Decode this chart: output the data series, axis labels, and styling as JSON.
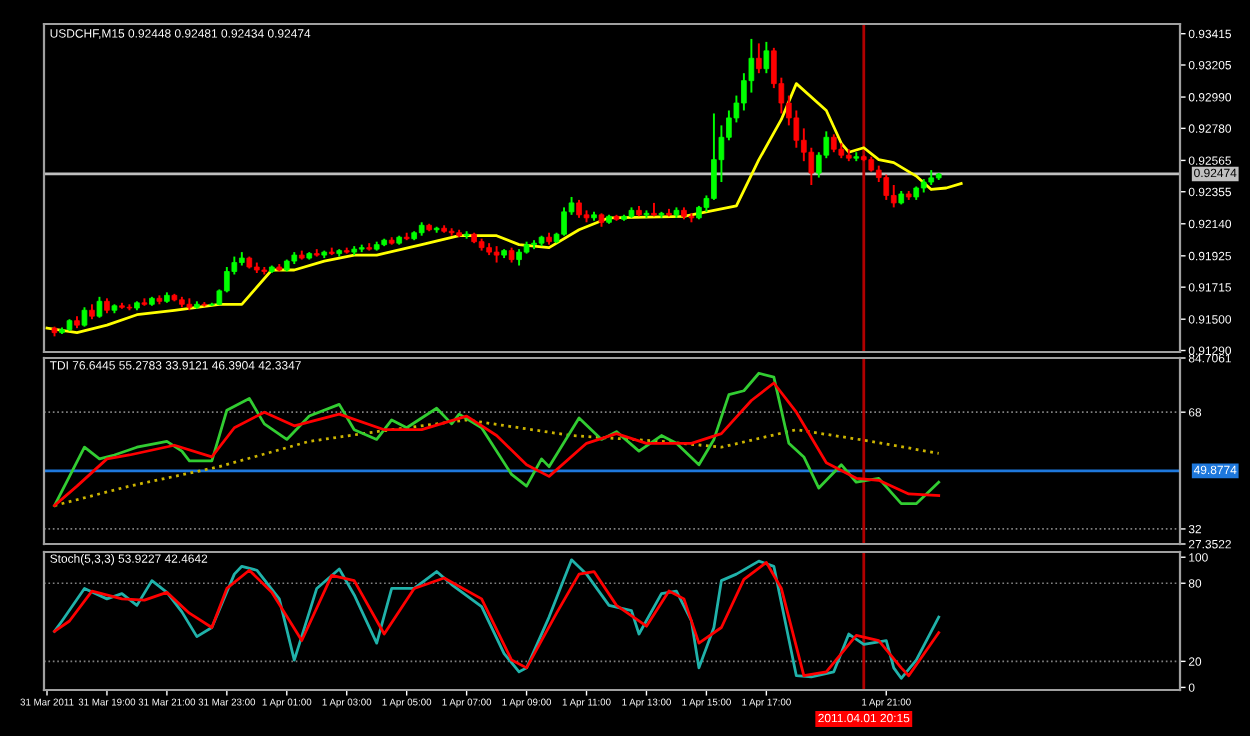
{
  "chart_data": [
    {
      "type": "candlestick",
      "title": "USDCHF,M15 0.92448 0.92481 0.92434 0.92474",
      "x": [
        "2011-03-31T17:15",
        "2011-03-31T17:30",
        "2011-03-31T17:45",
        "2011-03-31T18:00",
        "2011-03-31T18:15",
        "2011-03-31T18:30",
        "2011-03-31T18:45",
        "2011-03-31T19:00",
        "2011-03-31T19:15",
        "2011-03-31T19:30",
        "2011-03-31T19:45",
        "2011-03-31T20:00",
        "2011-03-31T20:15",
        "2011-03-31T20:30",
        "2011-03-31T20:45",
        "2011-03-31T21:00",
        "2011-03-31T21:15",
        "2011-03-31T21:30",
        "2011-03-31T21:45",
        "2011-03-31T22:00",
        "2011-03-31T22:15",
        "2011-03-31T22:30",
        "2011-03-31T22:45",
        "2011-03-31T23:00",
        "2011-03-31T23:15",
        "2011-03-31T23:30",
        "2011-03-31T23:45",
        "2011-04-01T00:00",
        "2011-04-01T00:15",
        "2011-04-01T00:30",
        "2011-04-01T00:45",
        "2011-04-01T01:00",
        "2011-04-01T01:15",
        "2011-04-01T01:30",
        "2011-04-01T01:45",
        "2011-04-01T02:00",
        "2011-04-01T02:15",
        "2011-04-01T02:30",
        "2011-04-01T02:45",
        "2011-04-01T03:00",
        "2011-04-01T03:15",
        "2011-04-01T03:30",
        "2011-04-01T03:45",
        "2011-04-01T04:00",
        "2011-04-01T04:15",
        "2011-04-01T04:30",
        "2011-04-01T04:45",
        "2011-04-01T05:00",
        "2011-04-01T05:15",
        "2011-04-01T05:30",
        "2011-04-01T05:45",
        "2011-04-01T06:00",
        "2011-04-01T06:15",
        "2011-04-01T06:30",
        "2011-04-01T06:45",
        "2011-04-01T07:00",
        "2011-04-01T07:15",
        "2011-04-01T07:30",
        "2011-04-01T07:45",
        "2011-04-01T08:00",
        "2011-04-01T08:15",
        "2011-04-01T08:30",
        "2011-04-01T08:45",
        "2011-04-01T09:00",
        "2011-04-01T09:15",
        "2011-04-01T09:30",
        "2011-04-01T09:45",
        "2011-04-01T10:00",
        "2011-04-01T10:15",
        "2011-04-01T10:30",
        "2011-04-01T10:45",
        "2011-04-01T11:00",
        "2011-04-01T11:15",
        "2011-04-01T11:30",
        "2011-04-01T11:45",
        "2011-04-01T12:00",
        "2011-04-01T12:15",
        "2011-04-01T12:30",
        "2011-04-01T12:45",
        "2011-04-01T13:00",
        "2011-04-01T13:15",
        "2011-04-01T13:30",
        "2011-04-01T13:45",
        "2011-04-01T14:00",
        "2011-04-01T14:15",
        "2011-04-01T14:30",
        "2011-04-01T14:45",
        "2011-04-01T15:00",
        "2011-04-01T15:15",
        "2011-04-01T15:30",
        "2011-04-01T15:45",
        "2011-04-01T16:00",
        "2011-04-01T16:15",
        "2011-04-01T16:30",
        "2011-04-01T16:45",
        "2011-04-01T17:00",
        "2011-04-01T17:15",
        "2011-04-01T17:30",
        "2011-04-01T17:45",
        "2011-04-01T18:00",
        "2011-04-01T18:15",
        "2011-04-01T18:30",
        "2011-04-01T18:45",
        "2011-04-01T19:00",
        "2011-04-01T19:15",
        "2011-04-01T19:30",
        "2011-04-01T19:45",
        "2011-04-01T20:00",
        "2011-04-01T20:15",
        "2011-04-01T20:30",
        "2011-04-01T20:45",
        "2011-04-01T21:00",
        "2011-04-01T21:15",
        "2011-04-01T21:30",
        "2011-04-01T21:45",
        "2011-04-01T22:00",
        "2011-04-01T22:15",
        "2011-04-01T22:30",
        "2011-04-01T22:45"
      ],
      "ohlc": [
        [
          0.9144,
          0.9145,
          0.91385,
          0.9141
        ],
        [
          0.9141,
          0.91445,
          0.914,
          0.9143
        ],
        [
          0.9143,
          0.915,
          0.9142,
          0.9149
        ],
        [
          0.9149,
          0.9152,
          0.9144,
          0.9146
        ],
        [
          0.9146,
          0.9158,
          0.9145,
          0.9156
        ],
        [
          0.9156,
          0.916,
          0.915,
          0.9152
        ],
        [
          0.9152,
          0.9165,
          0.9151,
          0.9162
        ],
        [
          0.9162,
          0.9164,
          0.9154,
          0.9156
        ],
        [
          0.9156,
          0.916,
          0.9154,
          0.9159
        ],
        [
          0.9159,
          0.9161,
          0.9157,
          0.9158
        ],
        [
          0.9158,
          0.916,
          0.9156,
          0.91575
        ],
        [
          0.91575,
          0.9162,
          0.9156,
          0.9161
        ],
        [
          0.9161,
          0.9164,
          0.9159,
          0.916
        ],
        [
          0.916,
          0.9165,
          0.9159,
          0.9164
        ],
        [
          0.9164,
          0.9166,
          0.916,
          0.9162
        ],
        [
          0.9162,
          0.9168,
          0.9161,
          0.9166
        ],
        [
          0.9166,
          0.9167,
          0.9162,
          0.9163
        ],
        [
          0.9163,
          0.9165,
          0.9158,
          0.916
        ],
        [
          0.916,
          0.9164,
          0.9156,
          0.9158
        ],
        [
          0.9158,
          0.9162,
          0.9157,
          0.916
        ],
        [
          0.916,
          0.91615,
          0.91585,
          0.91595
        ],
        [
          0.91595,
          0.9161,
          0.9159,
          0.916
        ],
        [
          0.916,
          0.917,
          0.91595,
          0.9169
        ],
        [
          0.9169,
          0.9185,
          0.9168,
          0.9182
        ],
        [
          0.9182,
          0.9192,
          0.918,
          0.9188
        ],
        [
          0.9188,
          0.9195,
          0.9186,
          0.9191
        ],
        [
          0.9191,
          0.9192,
          0.9184,
          0.9185
        ],
        [
          0.9185,
          0.9188,
          0.9181,
          0.9183
        ],
        [
          0.9183,
          0.9185,
          0.918,
          0.9182
        ],
        [
          0.9182,
          0.9186,
          0.9181,
          0.9185
        ],
        [
          0.9185,
          0.9187,
          0.9182,
          0.9183
        ],
        [
          0.9183,
          0.919,
          0.9182,
          0.9189
        ],
        [
          0.9189,
          0.9195,
          0.9187,
          0.9193
        ],
        [
          0.9193,
          0.9196,
          0.919,
          0.9191
        ],
        [
          0.9191,
          0.9195,
          0.919,
          0.9194
        ],
        [
          0.9194,
          0.9197,
          0.9192,
          0.9193
        ],
        [
          0.9193,
          0.9196,
          0.9191,
          0.9195
        ],
        [
          0.9195,
          0.9198,
          0.9193,
          0.9194
        ],
        [
          0.9194,
          0.9197,
          0.9192,
          0.9196
        ],
        [
          0.9196,
          0.9198,
          0.9194,
          0.9195
        ],
        [
          0.9195,
          0.9199,
          0.9193,
          0.9197
        ],
        [
          0.9197,
          0.92,
          0.9195,
          0.9198
        ],
        [
          0.9198,
          0.9201,
          0.9196,
          0.9197
        ],
        [
          0.9197,
          0.9202,
          0.9196,
          0.92
        ],
        [
          0.92,
          0.9204,
          0.9199,
          0.9203
        ],
        [
          0.9203,
          0.9205,
          0.92,
          0.9201
        ],
        [
          0.9201,
          0.9206,
          0.92,
          0.9205
        ],
        [
          0.9205,
          0.9208,
          0.9203,
          0.9204
        ],
        [
          0.9204,
          0.9209,
          0.9203,
          0.9208
        ],
        [
          0.9208,
          0.9215,
          0.9206,
          0.9213
        ],
        [
          0.9213,
          0.9214,
          0.9209,
          0.921
        ],
        [
          0.921,
          0.9212,
          0.9208,
          0.9211
        ],
        [
          0.9211,
          0.9213,
          0.9208,
          0.9209
        ],
        [
          0.9209,
          0.9211,
          0.9206,
          0.9208
        ],
        [
          0.9208,
          0.921,
          0.9205,
          0.9206
        ],
        [
          0.9206,
          0.9209,
          0.9204,
          0.9207
        ],
        [
          0.9207,
          0.9208,
          0.9201,
          0.9202
        ],
        [
          0.9202,
          0.9204,
          0.9196,
          0.9198
        ],
        [
          0.9198,
          0.9201,
          0.9193,
          0.9195
        ],
        [
          0.9195,
          0.9199,
          0.9188,
          0.9193
        ],
        [
          0.9193,
          0.9197,
          0.9191,
          0.9196
        ],
        [
          0.9196,
          0.9198,
          0.9188,
          0.919
        ],
        [
          0.919,
          0.9197,
          0.9186,
          0.9195
        ],
        [
          0.9195,
          0.9202,
          0.9194,
          0.92
        ],
        [
          0.92,
          0.9203,
          0.9197,
          0.9201
        ],
        [
          0.9201,
          0.9206,
          0.9199,
          0.9205
        ],
        [
          0.9205,
          0.9208,
          0.92,
          0.9202
        ],
        [
          0.9202,
          0.9208,
          0.9201,
          0.9207
        ],
        [
          0.9207,
          0.9225,
          0.9206,
          0.9222
        ],
        [
          0.9222,
          0.9232,
          0.922,
          0.9228
        ],
        [
          0.9228,
          0.923,
          0.9218,
          0.922
        ],
        [
          0.922,
          0.9223,
          0.9215,
          0.9218
        ],
        [
          0.9218,
          0.9222,
          0.9216,
          0.922
        ],
        [
          0.922,
          0.9221,
          0.9212,
          0.9215
        ],
        [
          0.9215,
          0.922,
          0.9214,
          0.9219
        ],
        [
          0.9219,
          0.922,
          0.9216,
          0.9217
        ],
        [
          0.9217,
          0.922,
          0.9216,
          0.9219
        ],
        [
          0.9219,
          0.9225,
          0.9218,
          0.9223
        ],
        [
          0.9223,
          0.9226,
          0.9219,
          0.922
        ],
        [
          0.922,
          0.9223,
          0.9218,
          0.9221
        ],
        [
          0.9221,
          0.9228,
          0.9219,
          0.922
        ],
        [
          0.922,
          0.9222,
          0.9218,
          0.9221
        ],
        [
          0.9221,
          0.9224,
          0.9219,
          0.922
        ],
        [
          0.922,
          0.9225,
          0.9218,
          0.9223
        ],
        [
          0.9223,
          0.9225,
          0.9217,
          0.9219
        ],
        [
          0.9219,
          0.9221,
          0.9215,
          0.9218
        ],
        [
          0.9218,
          0.9226,
          0.9217,
          0.9225
        ],
        [
          0.9225,
          0.9233,
          0.9222,
          0.9231
        ],
        [
          0.9231,
          0.9288,
          0.923,
          0.9257
        ],
        [
          0.9257,
          0.928,
          0.9242,
          0.9272
        ],
        [
          0.9272,
          0.929,
          0.927,
          0.9285
        ],
        [
          0.9285,
          0.93,
          0.9282,
          0.9295
        ],
        [
          0.9295,
          0.9315,
          0.929,
          0.931
        ],
        [
          0.931,
          0.9338,
          0.9302,
          0.9325
        ],
        [
          0.9325,
          0.9335,
          0.9315,
          0.9318
        ],
        [
          0.9318,
          0.9336,
          0.9315,
          0.933
        ],
        [
          0.933,
          0.9332,
          0.9305,
          0.9308
        ],
        [
          0.9308,
          0.9312,
          0.9288,
          0.9295
        ],
        [
          0.9295,
          0.93,
          0.928,
          0.9285
        ],
        [
          0.9285,
          0.929,
          0.9265,
          0.927
        ],
        [
          0.927,
          0.9278,
          0.9256,
          0.9262
        ],
        [
          0.9262,
          0.9265,
          0.924,
          0.9248
        ],
        [
          0.9248,
          0.9262,
          0.9245,
          0.926
        ],
        [
          0.926,
          0.9276,
          0.9258,
          0.9272
        ],
        [
          0.9272,
          0.9274,
          0.9262,
          0.9264
        ],
        [
          0.9264,
          0.9268,
          0.9258,
          0.926
        ],
        [
          0.926,
          0.9264,
          0.9256,
          0.9258
        ],
        [
          0.9258,
          0.9262,
          0.9256,
          0.9259
        ],
        [
          0.9259,
          0.926,
          0.9256,
          0.9257
        ],
        [
          0.9257,
          0.9259,
          0.9249,
          0.925
        ],
        [
          0.925,
          0.9253,
          0.9242,
          0.9245
        ],
        [
          0.9245,
          0.9247,
          0.923,
          0.9233
        ],
        [
          0.9233,
          0.924,
          0.9225,
          0.9228
        ],
        [
          0.9228,
          0.9236,
          0.9227,
          0.9234
        ],
        [
          0.9234,
          0.9236,
          0.923,
          0.9232
        ],
        [
          0.9232,
          0.9239,
          0.923,
          0.9238
        ],
        [
          0.9238,
          0.9244,
          0.9235,
          0.9242
        ],
        [
          0.9242,
          0.925,
          0.924,
          0.92448
        ],
        [
          0.92448,
          0.92481,
          0.92434,
          0.92474
        ]
      ],
      "colors": [
        "#ff0000",
        "#00ff00",
        "#00ff00",
        "#ff0000",
        "#00ff00",
        "#ff0000",
        "#00ff00",
        "#ff0000",
        "#00ff00",
        "#ff0000",
        "#ff0000",
        "#00ff00",
        "#ff0000",
        "#00ff00",
        "#ff0000",
        "#00ff00",
        "#ff0000",
        "#ff0000",
        "#ff0000",
        "#00ff00",
        "#ff0000",
        "#00ff00",
        "#00ff00",
        "#00ff00",
        "#00ff00",
        "#00ff00",
        "#ff0000",
        "#ff0000",
        "#ff0000",
        "#00ff00",
        "#ff0000",
        "#00ff00",
        "#00ff00",
        "#ff0000",
        "#00ff00",
        "#ff0000",
        "#00ff00",
        "#ff0000",
        "#00ff00",
        "#ff0000",
        "#00ff00",
        "#00ff00",
        "#ff0000",
        "#00ff00",
        "#00ff00",
        "#ff0000",
        "#00ff00",
        "#ff0000",
        "#00ff00",
        "#00ff00",
        "#ff0000",
        "#00ff00",
        "#ff0000",
        "#ff0000",
        "#ff0000",
        "#00ff00",
        "#ff0000",
        "#ff0000",
        "#ff0000",
        "#ff0000",
        "#00ff00",
        "#ff0000",
        "#00ff00",
        "#00ff00",
        "#00ff00",
        "#00ff00",
        "#ff0000",
        "#00ff00",
        "#00ff00",
        "#00ff00",
        "#ff0000",
        "#ff0000",
        "#00ff00",
        "#ff0000",
        "#00ff00",
        "#ff0000",
        "#00ff00",
        "#00ff00",
        "#ff0000",
        "#00ff00",
        "#ff0000",
        "#00ff00",
        "#ff0000",
        "#00ff00",
        "#ff0000",
        "#ff0000",
        "#00ff00",
        "#00ff00",
        "#00ff00",
        "#00ff00",
        "#00ff00",
        "#00ff00",
        "#00ff00",
        "#00ff00",
        "#ff0000",
        "#00ff00",
        "#ff0000",
        "#ff0000",
        "#ff0000",
        "#ff0000",
        "#ff0000",
        "#ff0000",
        "#00ff00",
        "#00ff00",
        "#ff0000",
        "#ff0000",
        "#ff0000",
        "#00ff00",
        "#ff0000",
        "#ff0000",
        "#ff0000",
        "#ff0000",
        "#ff0000",
        "#00ff00",
        "#ff0000",
        "#00ff00",
        "#00ff00",
        "#00ff00",
        "#00ff00"
      ],
      "series": [
        {
          "type": "line",
          "color": "#ffff00",
          "x": [
            "2011-03-31T17:00",
            "2011-03-31T18:00",
            "2011-03-31T19:00",
            "2011-03-31T20:00",
            "2011-03-31T21:15",
            "2011-03-31T22:45",
            "2011-03-31T23:30",
            "2011-04-01T00:30",
            "2011-04-01T01:15",
            "2011-04-01T02:15",
            "2011-04-01T03:15",
            "2011-04-01T04:00",
            "2011-04-01T05:30",
            "2011-04-01T06:45",
            "2011-04-01T08:00",
            "2011-04-01T08:45",
            "2011-04-01T09:45",
            "2011-04-01T10:45",
            "2011-04-01T11:45",
            "2011-04-01T14:15",
            "2011-04-01T16:00",
            "2011-04-01T16:45",
            "2011-04-01T17:30",
            "2011-04-01T18:00",
            "2011-04-01T19:00",
            "2011-04-01T19:30",
            "2011-04-01T19:45",
            "2011-04-01T20:15",
            "2011-04-01T20:45",
            "2011-04-01T21:15",
            "2011-04-01T22:00",
            "2011-04-01T22:30",
            "2011-04-01T23:00",
            "2011-04-01T23:30"
          ],
          "values": [
            0.9144,
            0.9141,
            0.9146,
            0.9153,
            0.9156,
            0.916,
            0.916,
            0.9183,
            0.9183,
            0.9189,
            0.9193,
            0.9193,
            0.92,
            0.9206,
            0.9206,
            0.92,
            0.9198,
            0.921,
            0.9218,
            0.9219,
            0.9226,
            0.9257,
            0.9284,
            0.9308,
            0.929,
            0.9268,
            0.9262,
            0.9265,
            0.9257,
            0.9255,
            0.9246,
            0.9237,
            0.9238,
            0.9241
          ]
        }
      ],
      "xlim": [
        "2011-03-31T16:54",
        "2011-04-02T06:48"
      ],
      "ylim": [
        0.9128,
        0.9348
      ],
      "yticks": [
        0.93415,
        0.93205,
        {
          "value": 0.9299,
          "label": "0.92990"
        },
        {
          "value": 0.9278,
          "label": "0.92780"
        },
        0.92565,
        0.92355,
        {
          "value": 0.9214,
          "label": "0.92140"
        },
        0.91925,
        0.91715,
        {
          "value": 0.915,
          "label": "0.91500"
        },
        {
          "value": 0.9129,
          "label": "0.91290"
        }
      ],
      "ref_lines": [
        {
          "axis": "y",
          "value": 0.92474,
          "label": "0.92474",
          "color": "#c0c0c0",
          "line_style": "solid"
        },
        {
          "axis": "x",
          "value": "2011-04-01T20:15",
          "color": "#b00000",
          "line_style": "solid"
        }
      ],
      "tick_labels": "y"
    },
    {
      "type": "line",
      "title": "TDI 76.6445 55.2783 33.9121 46.3904 42.3347",
      "series": [
        {
          "color": "#ccb400",
          "line_style": "dotted",
          "x": [
            "2011-03-31T17:15",
            "2011-03-31T19:45",
            "2011-03-31T22:45",
            "2011-04-01T01:45",
            "2011-04-01T04:00",
            "2011-04-01T07:00",
            "2011-04-01T10:30",
            "2011-04-01T13:30",
            "2011-04-01T15:30",
            "2011-04-01T18:00",
            "2011-04-01T20:30",
            "2011-04-01T22:45"
          ],
          "values": [
            39.2,
            45.2,
            51.2,
            59,
            62,
            65.6,
            60.8,
            59,
            57.2,
            62.6,
            59,
            55.3
          ]
        },
        {
          "color": "#32cd32",
          "line_style": "solid",
          "x": [
            "2011-03-31T17:15",
            "2011-03-31T18:15",
            "2011-03-31T18:45",
            "2011-03-31T19:15",
            "2011-03-31T20:00",
            "2011-03-31T21:00",
            "2011-03-31T21:30",
            "2011-03-31T21:45",
            "2011-03-31T22:30",
            "2011-03-31T23:00",
            "2011-03-31T23:45",
            "2011-04-01T00:15",
            "2011-04-01T01:00",
            "2011-04-01T01:45",
            "2011-04-01T02:45",
            "2011-04-01T03:15",
            "2011-04-01T04:00",
            "2011-04-01T04:30",
            "2011-04-01T05:00",
            "2011-04-01T06:00",
            "2011-04-01T06:30",
            "2011-04-01T06:45",
            "2011-04-01T07:30",
            "2011-04-01T08:30",
            "2011-04-01T09:00",
            "2011-04-01T09:30",
            "2011-04-01T09:45",
            "2011-04-01T10:45",
            "2011-04-01T11:30",
            "2011-04-01T12:00",
            "2011-04-01T12:45",
            "2011-04-01T13:30",
            "2011-04-01T14:00",
            "2011-04-01T14:45",
            "2011-04-01T15:15",
            "2011-04-01T15:45",
            "2011-04-01T16:15",
            "2011-04-01T16:45",
            "2011-04-01T17:15",
            "2011-04-01T17:45",
            "2011-04-01T18:15",
            "2011-04-01T18:45",
            "2011-04-01T19:30",
            "2011-04-01T20:00",
            "2011-04-01T20:45",
            "2011-04-01T21:30",
            "2011-04-01T22:00",
            "2011-04-01T22:45"
          ],
          "values": [
            39.2,
            57.2,
            53.6,
            54.8,
            57.2,
            59,
            56,
            53,
            53,
            68.6,
            72.2,
            64.4,
            59.6,
            66.8,
            70.4,
            62.6,
            59.6,
            65.6,
            63.2,
            69.2,
            64.4,
            67.4,
            63.2,
            48.8,
            45.2,
            53.6,
            51.2,
            66.2,
            59.6,
            62,
            56,
            60.8,
            58.4,
            51.8,
            59.6,
            73.4,
            74.6,
            80,
            78.8,
            58.4,
            54.2,
            44.6,
            51.8,
            46.4,
            47.6,
            39.8,
            39.8,
            46.4
          ]
        },
        {
          "color": "#ff0000",
          "line_style": "solid",
          "x": [
            "2011-03-31T17:15",
            "2011-03-31T18:00",
            "2011-03-31T19:00",
            "2011-03-31T19:45",
            "2011-03-31T21:15",
            "2011-03-31T22:30",
            "2011-03-31T23:15",
            "2011-04-01T00:15",
            "2011-04-01T01:15",
            "2011-04-01T02:45",
            "2011-04-01T04:15",
            "2011-04-01T05:30",
            "2011-04-01T07:00",
            "2011-04-01T08:00",
            "2011-04-01T09:00",
            "2011-04-01T09:45",
            "2011-04-01T11:00",
            "2011-04-01T12:00",
            "2011-04-01T13:00",
            "2011-04-01T14:30",
            "2011-04-01T15:30",
            "2011-04-01T16:30",
            "2011-04-01T17:15",
            "2011-04-01T18:00",
            "2011-04-01T19:00",
            "2011-04-01T20:00",
            "2011-04-01T20:45",
            "2011-04-01T21:45",
            "2011-04-01T22:45"
          ],
          "values": [
            39.2,
            45.2,
            53.6,
            54.8,
            57.8,
            54.2,
            63.2,
            68,
            63.8,
            67.4,
            62.6,
            62.6,
            66.8,
            60.8,
            51.8,
            48.2,
            58.4,
            61.4,
            58.4,
            58.4,
            61.4,
            71.6,
            77,
            68,
            52.4,
            47.6,
            47,
            42.8,
            42.3
          ]
        }
      ],
      "xlim": [
        "2011-03-31T16:54",
        "2011-04-02T06:48"
      ],
      "ylim": [
        27.3522,
        84.7061
      ],
      "yticks": [
        84.7061,
        68,
        32,
        27.3522
      ],
      "ref_lines": [
        {
          "axis": "y",
          "value": 68,
          "color": "#808080",
          "line_style": "dotted"
        },
        {
          "axis": "y",
          "value": 32,
          "color": "#808080",
          "line_style": "dotted"
        },
        {
          "axis": "y",
          "value": 49.8774,
          "label": "49.8774",
          "color": "#1e78dc",
          "line_style": "solid"
        },
        {
          "axis": "x",
          "value": "2011-04-01T20:15",
          "color": "#b00000",
          "line_style": "solid"
        }
      ],
      "tick_labels": "y"
    },
    {
      "type": "line",
      "title": "Stoch(5,3,3) 53.9227 42.4642",
      "series": [
        {
          "color": "#20b2aa",
          "line_style": "solid",
          "x": [
            "2011-03-31T17:15",
            "2011-03-31T17:30",
            "2011-03-31T18:15",
            "2011-03-31T19:00",
            "2011-03-31T19:30",
            "2011-03-31T20:00",
            "2011-03-31T20:30",
            "2011-03-31T21:00",
            "2011-03-31T21:30",
            "2011-03-31T22:00",
            "2011-03-31T22:30",
            "2011-03-31T23:15",
            "2011-03-31T23:30",
            "2011-04-01T00:00",
            "2011-04-01T00:45",
            "2011-04-01T01:15",
            "2011-04-01T02:00",
            "2011-04-01T02:45",
            "2011-04-01T03:15",
            "2011-04-01T04:00",
            "2011-04-01T04:30",
            "2011-04-01T05:15",
            "2011-04-01T06:00",
            "2011-04-01T06:30",
            "2011-04-01T07:30",
            "2011-04-01T08:15",
            "2011-04-01T08:45",
            "2011-04-01T09:00",
            "2011-04-01T09:45",
            "2011-04-01T10:30",
            "2011-04-01T11:00",
            "2011-04-01T11:45",
            "2011-04-01T12:30",
            "2011-04-01T12:45",
            "2011-04-01T13:30",
            "2011-04-01T14:00",
            "2011-04-01T14:30",
            "2011-04-01T14:45",
            "2011-04-01T15:15",
            "2011-04-01T15:30",
            "2011-04-01T16:00",
            "2011-04-01T16:45",
            "2011-04-01T17:15",
            "2011-04-01T18:00",
            "2011-04-01T18:30",
            "2011-04-01T19:15",
            "2011-04-01T19:45",
            "2011-04-01T20:15",
            "2011-04-01T21:00",
            "2011-04-01T21:15",
            "2011-04-01T21:30",
            "2011-04-01T22:00",
            "2011-04-01T22:45"
          ],
          "values": [
            43,
            51,
            76,
            68,
            72,
            63,
            82,
            73,
            58,
            39,
            46,
            87,
            93,
            90,
            68,
            21,
            76,
            91,
            71,
            34,
            76,
            76,
            89,
            79,
            62,
            26,
            12,
            15,
            54,
            98,
            87,
            63,
            59,
            41,
            72,
            74,
            51,
            15,
            46,
            82,
            87,
            97,
            93,
            9,
            8,
            12,
            41,
            33,
            36,
            15,
            7,
            21,
            54
          ]
        },
        {
          "color": "#ff0000",
          "line_style": "solid",
          "x": [
            "2011-03-31T17:15",
            "2011-03-31T17:45",
            "2011-03-31T18:30",
            "2011-03-31T19:30",
            "2011-03-31T20:15",
            "2011-03-31T21:00",
            "2011-03-31T21:45",
            "2011-03-31T22:30",
            "2011-03-31T23:00",
            "2011-03-31T23:45",
            "2011-04-01T00:30",
            "2011-04-01T01:30",
            "2011-04-01T02:30",
            "2011-04-01T03:15",
            "2011-04-01T04:15",
            "2011-04-01T05:15",
            "2011-04-01T06:15",
            "2011-04-01T07:30",
            "2011-04-01T08:30",
            "2011-04-01T09:00",
            "2011-04-01T10:00",
            "2011-04-01T10:45",
            "2011-04-01T11:15",
            "2011-04-01T12:00",
            "2011-04-01T13:00",
            "2011-04-01T13:45",
            "2011-04-01T14:15",
            "2011-04-01T14:45",
            "2011-04-01T15:30",
            "2011-04-01T16:15",
            "2011-04-01T17:00",
            "2011-04-01T17:30",
            "2011-04-01T18:15",
            "2011-04-01T19:00",
            "2011-04-01T20:00",
            "2011-04-01T20:45",
            "2011-04-01T21:30",
            "2011-04-01T21:45",
            "2011-04-01T22:45"
          ],
          "values": [
            43,
            51,
            74,
            68,
            67,
            73,
            57,
            46,
            76,
            90,
            73,
            36,
            86,
            82,
            41,
            76,
            84,
            68,
            21,
            15,
            57,
            87,
            89,
            63,
            47,
            74,
            68,
            34,
            46,
            83,
            96,
            76,
            9,
            12,
            40,
            36,
            15,
            9,
            42
          ]
        }
      ],
      "xlim": [
        "2011-03-31T16:54",
        "2011-04-02T06:48"
      ],
      "ylim": [
        -2,
        104
      ],
      "xticks": [
        {
          "value": "2011-03-31T17:00",
          "label": "31 Mar 2011"
        },
        {
          "value": "2011-03-31T19:00",
          "label": "31 Mar 19:00"
        },
        {
          "value": "2011-03-31T21:00",
          "label": "31 Mar 21:00"
        },
        {
          "value": "2011-03-31T23:00",
          "label": "31 Mar 23:00"
        },
        {
          "value": "2011-04-01T01:00",
          "label": "1 Apr 01:00"
        },
        {
          "value": "2011-04-01T03:00",
          "label": "1 Apr 03:00"
        },
        {
          "value": "2011-04-01T05:00",
          "label": "1 Apr 05:00"
        },
        {
          "value": "2011-04-01T07:00",
          "label": "1 Apr 07:00"
        },
        {
          "value": "2011-04-01T09:00",
          "label": "1 Apr 09:00"
        },
        {
          "value": "2011-04-01T11:00",
          "label": "1 Apr 11:00"
        },
        {
          "value": "2011-04-01T13:00",
          "label": "1 Apr 13:00"
        },
        {
          "value": "2011-04-01T15:00",
          "label": "1 Apr 15:00"
        },
        {
          "value": "2011-04-01T17:00",
          "label": "1 Apr 17:00"
        },
        {
          "value": "2011-04-01T21:00",
          "label": "1 Apr 21:00"
        }
      ],
      "yticks": [
        100,
        80,
        20,
        0
      ],
      "ref_lines": [
        {
          "axis": "y",
          "value": 80,
          "color": "#808080",
          "line_style": "dotted"
        },
        {
          "axis": "y",
          "value": 20,
          "color": "#808080",
          "line_style": "dotted"
        },
        {
          "axis": "x",
          "value": "2011-04-01T20:15",
          "label": "2011.04.01 20:15",
          "color": "#b00000",
          "line_style": "solid"
        }
      ]
    }
  ]
}
